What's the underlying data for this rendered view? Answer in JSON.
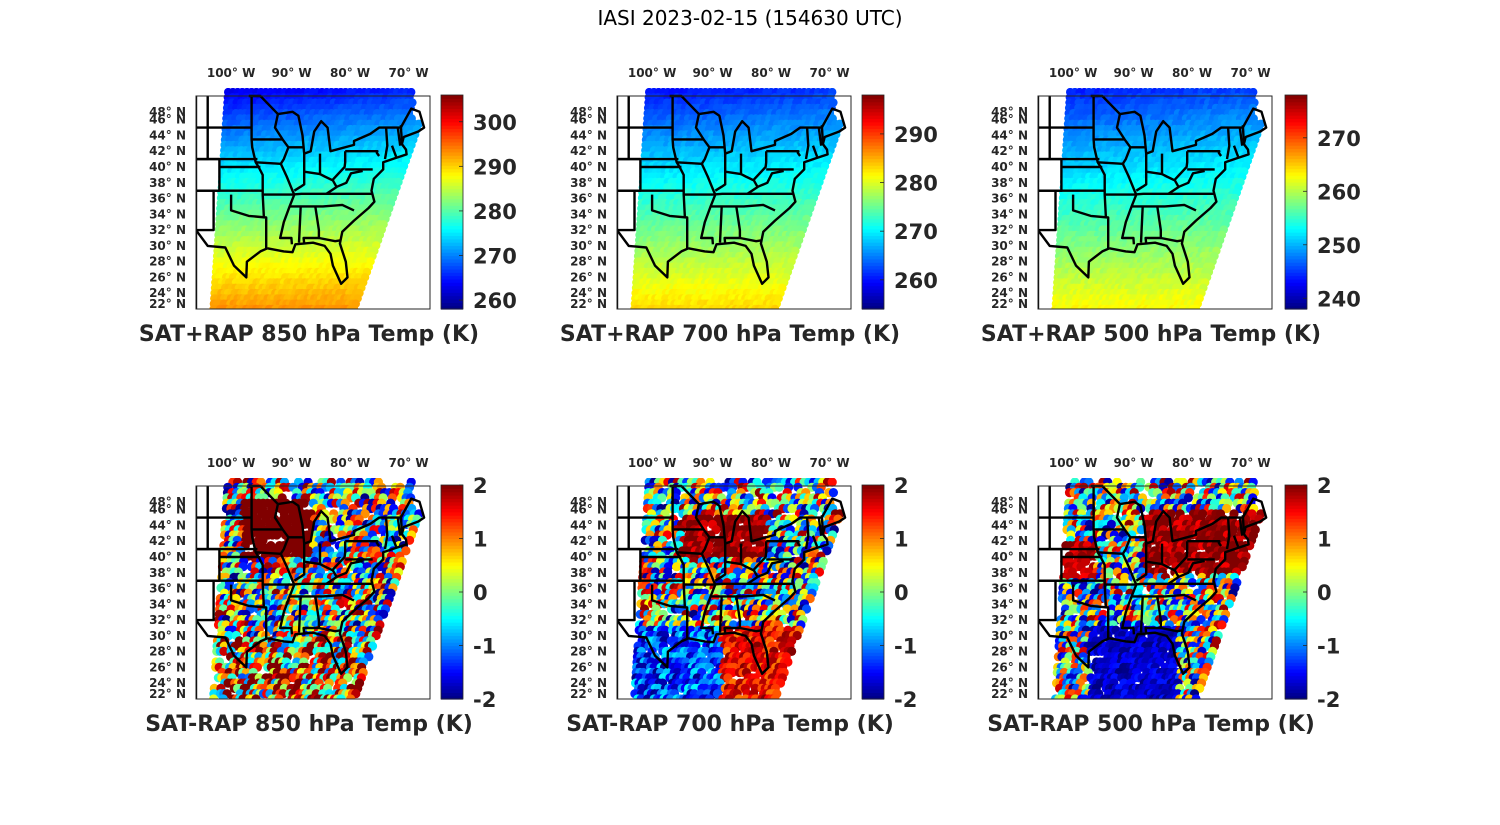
{
  "figure_title": "IASI 2023-02-15 (154630 UTC)",
  "chart_data": [
    {
      "type": "heatmap",
      "panel": "top-left",
      "title": "SAT+RAP 850 hPa Temp (K)",
      "x_ticks": [
        "100° W",
        "90° W",
        "80° W",
        "70° W"
      ],
      "y_ticks": [
        "48° N",
        "46° N",
        "44° N",
        "42° N",
        "40° N",
        "38° N",
        "36° N",
        "34° N",
        "32° N",
        "30° N",
        "28° N",
        "26° N",
        "24° N",
        "22° N"
      ],
      "colormap": "jet",
      "clim": [
        258,
        306
      ],
      "colorbar_ticks": [
        "260",
        "270",
        "280",
        "290",
        "300"
      ],
      "colorbar_tick_values": [
        260,
        270,
        280,
        290,
        300
      ],
      "field": "absolute",
      "north_value": 266,
      "south_value": 293
    },
    {
      "type": "heatmap",
      "panel": "top-middle",
      "title": "SAT+RAP 700 hPa Temp (K)",
      "x_ticks": [
        "100° W",
        "90° W",
        "80° W",
        "70° W"
      ],
      "y_ticks": [
        "48° N",
        "46° N",
        "44° N",
        "42° N",
        "40° N",
        "38° N",
        "36° N",
        "34° N",
        "32° N",
        "30° N",
        "28° N",
        "26° N",
        "24° N",
        "22° N"
      ],
      "colormap": "jet",
      "clim": [
        254,
        298
      ],
      "colorbar_ticks": [
        "260",
        "270",
        "280",
        "290"
      ],
      "colorbar_tick_values": [
        260,
        270,
        280,
        290
      ],
      "field": "absolute",
      "north_value": 262,
      "south_value": 283
    },
    {
      "type": "heatmap",
      "panel": "top-right",
      "title": "SAT+RAP 500 hPa Temp (K)",
      "x_ticks": [
        "100° W",
        "90° W",
        "80° W",
        "70° W"
      ],
      "y_ticks": [
        "48° N",
        "46° N",
        "44° N",
        "42° N",
        "40° N",
        "38° N",
        "36° N",
        "34° N",
        "32° N",
        "30° N",
        "28° N",
        "26° N",
        "24° N",
        "22° N"
      ],
      "colormap": "jet",
      "clim": [
        238,
        278
      ],
      "colorbar_ticks": [
        "240",
        "250",
        "260",
        "270"
      ],
      "colorbar_tick_values": [
        240,
        250,
        260,
        270
      ],
      "field": "absolute",
      "north_value": 246,
      "south_value": 263
    },
    {
      "type": "heatmap",
      "panel": "bottom-left",
      "title": "SAT-RAP 850 hPa Temp (K)",
      "x_ticks": [
        "100° W",
        "90° W",
        "80° W",
        "70° W"
      ],
      "y_ticks": [
        "48° N",
        "46° N",
        "44° N",
        "42° N",
        "40° N",
        "38° N",
        "36° N",
        "34° N",
        "32° N",
        "30° N",
        "28° N",
        "26° N",
        "24° N",
        "22° N"
      ],
      "colormap": "jet",
      "clim": [
        -2,
        2
      ],
      "colorbar_ticks": [
        "-2",
        "-1",
        "0",
        "1",
        "2"
      ],
      "colorbar_tick_values": [
        -2,
        -1,
        0,
        1,
        2
      ],
      "field": "difference"
    },
    {
      "type": "heatmap",
      "panel": "bottom-middle",
      "title": "SAT-RAP 700 hPa Temp (K)",
      "x_ticks": [
        "100° W",
        "90° W",
        "80° W",
        "70° W"
      ],
      "y_ticks": [
        "48° N",
        "46° N",
        "44° N",
        "42° N",
        "40° N",
        "38° N",
        "36° N",
        "34° N",
        "32° N",
        "30° N",
        "28° N",
        "26° N",
        "24° N",
        "22° N"
      ],
      "colormap": "jet",
      "clim": [
        -2,
        2
      ],
      "colorbar_ticks": [
        "-2",
        "-1",
        "0",
        "1",
        "2"
      ],
      "colorbar_tick_values": [
        -2,
        -1,
        0,
        1,
        2
      ],
      "field": "difference"
    },
    {
      "type": "heatmap",
      "panel": "bottom-right",
      "title": "SAT-RAP 500 hPa Temp (K)",
      "x_ticks": [
        "100° W",
        "90° W",
        "80° W",
        "70° W"
      ],
      "y_ticks": [
        "48° N",
        "46° N",
        "44° N",
        "42° N",
        "40° N",
        "38° N",
        "36° N",
        "34° N",
        "32° N",
        "30° N",
        "28° N",
        "26° N",
        "24° N",
        "22° N"
      ],
      "colormap": "jet",
      "clim": [
        -2,
        2
      ],
      "colorbar_ticks": [
        "-2",
        "-1",
        "0",
        "1",
        "2"
      ],
      "colorbar_tick_values": [
        -2,
        -1,
        0,
        1,
        2
      ],
      "field": "difference"
    }
  ]
}
